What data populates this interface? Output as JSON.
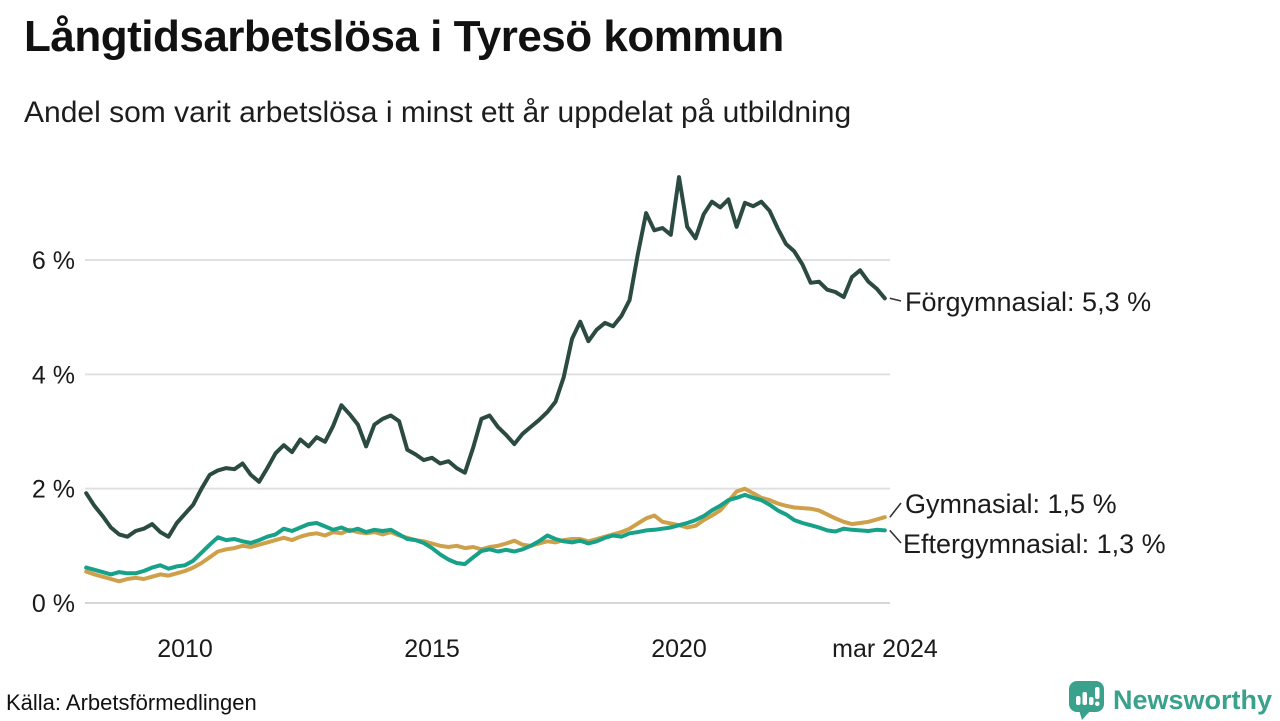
{
  "header": {
    "title": "Långtidsarbetslösa i Tyresö kommun",
    "subtitle": "Andel som varit arbetslösa i minst ett år uppdelat på utbildning"
  },
  "footer": {
    "source": "Källa: Arbetsförmedlingen",
    "brand": "Newsworthy"
  },
  "colors": {
    "forgymnasial": "#2b4a42",
    "gymnasial": "#cfa04a",
    "eftergymnasial": "#17a189",
    "gridline": "#e0e0e0",
    "baseline": "#d6d6d6",
    "leader": "#333333",
    "brand_teal": "#3aa18c"
  },
  "chart_data": {
    "type": "line",
    "x_start": 2008.0,
    "x_step_years": 0.1666667,
    "x_end_label_year": 2024.17,
    "ylim": [
      0,
      7.8
    ],
    "grid": true,
    "yticks": [
      {
        "v": 0,
        "label": "0 %"
      },
      {
        "v": 2,
        "label": "2 %"
      },
      {
        "v": 4,
        "label": "4 %"
      },
      {
        "v": 6,
        "label": "6 %"
      }
    ],
    "xticks": [
      {
        "t": 2010,
        "label": "2010"
      },
      {
        "t": 2015,
        "label": "2015"
      },
      {
        "t": 2020,
        "label": "2020"
      },
      {
        "t": 2024.17,
        "label": "mar 2024"
      }
    ],
    "series": [
      {
        "name": "Förgymnasial",
        "label": "Förgymnasial: 5,3 %",
        "end_value_text": "5,3 %",
        "color": "#2b4a42",
        "values": [
          1.92,
          1.7,
          1.52,
          1.32,
          1.2,
          1.16,
          1.26,
          1.3,
          1.38,
          1.24,
          1.16,
          1.4,
          1.56,
          1.72,
          2.0,
          2.24,
          2.32,
          2.36,
          2.34,
          2.44,
          2.24,
          2.12,
          2.36,
          2.62,
          2.76,
          2.64,
          2.86,
          2.74,
          2.9,
          2.82,
          3.1,
          3.46,
          3.3,
          3.12,
          2.74,
          3.12,
          3.22,
          3.28,
          3.18,
          2.68,
          2.6,
          2.5,
          2.54,
          2.44,
          2.48,
          2.36,
          2.28,
          2.72,
          3.22,
          3.28,
          3.08,
          2.94,
          2.78,
          2.96,
          3.08,
          3.2,
          3.34,
          3.52,
          3.95,
          4.62,
          4.92,
          4.58,
          4.78,
          4.9,
          4.84,
          5.02,
          5.3,
          6.1,
          6.82,
          6.52,
          6.56,
          6.44,
          7.45,
          6.58,
          6.38,
          6.8,
          7.02,
          6.92,
          7.06,
          6.58,
          7.0,
          6.94,
          7.02,
          6.86,
          6.55,
          6.28,
          6.15,
          5.92,
          5.6,
          5.62,
          5.48,
          5.44,
          5.35,
          5.7,
          5.82,
          5.62,
          5.5,
          5.33
        ]
      },
      {
        "name": "Gymnasial",
        "label": "Gymnasial: 1,5 %",
        "end_value_text": "1,5 %",
        "color": "#cfa04a",
        "values": [
          0.55,
          0.5,
          0.46,
          0.42,
          0.38,
          0.42,
          0.44,
          0.42,
          0.46,
          0.5,
          0.48,
          0.52,
          0.56,
          0.62,
          0.7,
          0.8,
          0.9,
          0.94,
          0.96,
          1.0,
          0.98,
          1.02,
          1.06,
          1.1,
          1.14,
          1.1,
          1.16,
          1.2,
          1.22,
          1.18,
          1.24,
          1.22,
          1.28,
          1.24,
          1.22,
          1.24,
          1.2,
          1.24,
          1.18,
          1.14,
          1.1,
          1.08,
          1.04,
          1.0,
          0.98,
          1.0,
          0.96,
          0.98,
          0.94,
          0.98,
          1.0,
          1.04,
          1.09,
          1.02,
          1.0,
          1.04,
          1.08,
          1.06,
          1.1,
          1.12,
          1.12,
          1.08,
          1.12,
          1.16,
          1.2,
          1.24,
          1.3,
          1.39,
          1.48,
          1.53,
          1.42,
          1.39,
          1.36,
          1.32,
          1.35,
          1.45,
          1.53,
          1.62,
          1.78,
          1.95,
          2.0,
          1.92,
          1.84,
          1.8,
          1.74,
          1.7,
          1.67,
          1.66,
          1.65,
          1.62,
          1.55,
          1.48,
          1.42,
          1.38,
          1.4,
          1.42,
          1.46,
          1.5
        ]
      },
      {
        "name": "Eftergymnasial",
        "label": "Eftergymnasial: 1,3 %",
        "end_value_text": "1,3 %",
        "color": "#17a189",
        "values": [
          0.62,
          0.58,
          0.54,
          0.5,
          0.54,
          0.52,
          0.52,
          0.56,
          0.62,
          0.66,
          0.6,
          0.64,
          0.66,
          0.74,
          0.88,
          1.02,
          1.15,
          1.1,
          1.12,
          1.08,
          1.05,
          1.1,
          1.16,
          1.2,
          1.3,
          1.26,
          1.32,
          1.38,
          1.4,
          1.34,
          1.28,
          1.32,
          1.26,
          1.3,
          1.24,
          1.28,
          1.26,
          1.28,
          1.2,
          1.12,
          1.1,
          1.05,
          0.96,
          0.85,
          0.76,
          0.7,
          0.68,
          0.8,
          0.91,
          0.94,
          0.9,
          0.93,
          0.9,
          0.94,
          1.0,
          1.08,
          1.18,
          1.12,
          1.08,
          1.06,
          1.09,
          1.04,
          1.08,
          1.14,
          1.18,
          1.16,
          1.22,
          1.24,
          1.27,
          1.28,
          1.3,
          1.32,
          1.36,
          1.4,
          1.45,
          1.52,
          1.62,
          1.7,
          1.8,
          1.84,
          1.89,
          1.84,
          1.8,
          1.72,
          1.62,
          1.55,
          1.45,
          1.4,
          1.36,
          1.32,
          1.27,
          1.25,
          1.3,
          1.28,
          1.27,
          1.26,
          1.28,
          1.27
        ]
      }
    ],
    "title": "Långtidsarbetslösa i Tyresö kommun",
    "xlabel": "",
    "ylabel": ""
  }
}
